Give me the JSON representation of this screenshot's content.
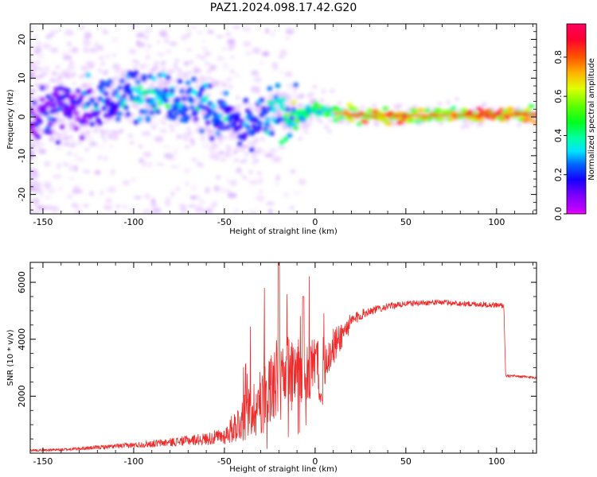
{
  "title": "PAZ1.2024.098.17.42.G20",
  "chart_data": [
    {
      "type": "heatmap",
      "xlabel": "Height of straight line (km)",
      "ylabel": "Frequency (Hz)",
      "xlim": [
        -157,
        122
      ],
      "ylim": [
        -25,
        24
      ],
      "xticks": [
        -150,
        -100,
        -50,
        0,
        50,
        100
      ],
      "yticks": [
        -20,
        -10,
        0,
        10,
        20
      ],
      "colorbar": {
        "label": "Normalized spectral amplitude",
        "range": [
          0,
          0.97
        ],
        "ticks": [
          0.0,
          0.2,
          0.4,
          0.6,
          0.8
        ],
        "colormap": "gist_rainbow_r",
        "under_color": "#ffffff"
      },
      "ridge": {
        "x": [
          -155,
          -140,
          -125,
          -110,
          -100,
          -90,
          -80,
          -70,
          -60,
          -50,
          -45,
          -40,
          -35,
          -30,
          -25,
          -20,
          -15,
          -10,
          -5,
          0,
          5,
          10,
          20,
          40,
          60,
          80,
          100,
          122
        ],
        "frequency": [
          1,
          2,
          3,
          4,
          6,
          7,
          6,
          4,
          2,
          0,
          -2,
          -4,
          -3,
          -1,
          1,
          2,
          1,
          0,
          1,
          2,
          1.5,
          1,
          0.5,
          0.3,
          0.3,
          0.5,
          0.6,
          0.7
        ],
        "amplitude": [
          0.15,
          0.18,
          0.2,
          0.25,
          0.35,
          0.4,
          0.35,
          0.3,
          0.3,
          0.3,
          0.25,
          0.25,
          0.3,
          0.3,
          0.35,
          0.4,
          0.45,
          0.5,
          0.5,
          0.55,
          0.55,
          0.6,
          0.75,
          0.85,
          0.8,
          0.8,
          0.85,
          0.85
        ]
      }
    },
    {
      "type": "line",
      "xlabel": "Height of straight line (km)",
      "ylabel": "SNR (10 * v/v)",
      "xlim": [
        -157,
        122
      ],
      "ylim": [
        0,
        6700
      ],
      "xticks": [
        -150,
        -100,
        -50,
        0,
        50,
        100
      ],
      "yticks": [
        2000,
        4000,
        6000
      ],
      "color": "#ee2c2c",
      "envelope": {
        "x": [
          -157,
          -140,
          -120,
          -100,
          -90,
          -80,
          -70,
          -60,
          -50,
          -45,
          -40,
          -35,
          -30,
          -25,
          -20,
          -15,
          -10,
          -5,
          0,
          5,
          10,
          15,
          20,
          25,
          30,
          40,
          50,
          60,
          70,
          80,
          90,
          100,
          104,
          105,
          110,
          122
        ],
        "mean": [
          100,
          120,
          200,
          280,
          330,
          380,
          450,
          500,
          600,
          900,
          1200,
          1500,
          1800,
          2200,
          2600,
          2800,
          2700,
          2900,
          3000,
          3200,
          3700,
          4200,
          4600,
          4850,
          5000,
          5150,
          5250,
          5280,
          5300,
          5250,
          5230,
          5200,
          5180,
          2700,
          2700,
          2650
        ],
        "spread": [
          40,
          50,
          70,
          100,
          130,
          150,
          180,
          220,
          300,
          550,
          800,
          1000,
          1200,
          1400,
          1500,
          1400,
          1300,
          1200,
          1000,
          900,
          700,
          500,
          300,
          200,
          150,
          120,
          100,
          100,
          100,
          100,
          100,
          100,
          100,
          60,
          50,
          50
        ]
      }
    }
  ]
}
